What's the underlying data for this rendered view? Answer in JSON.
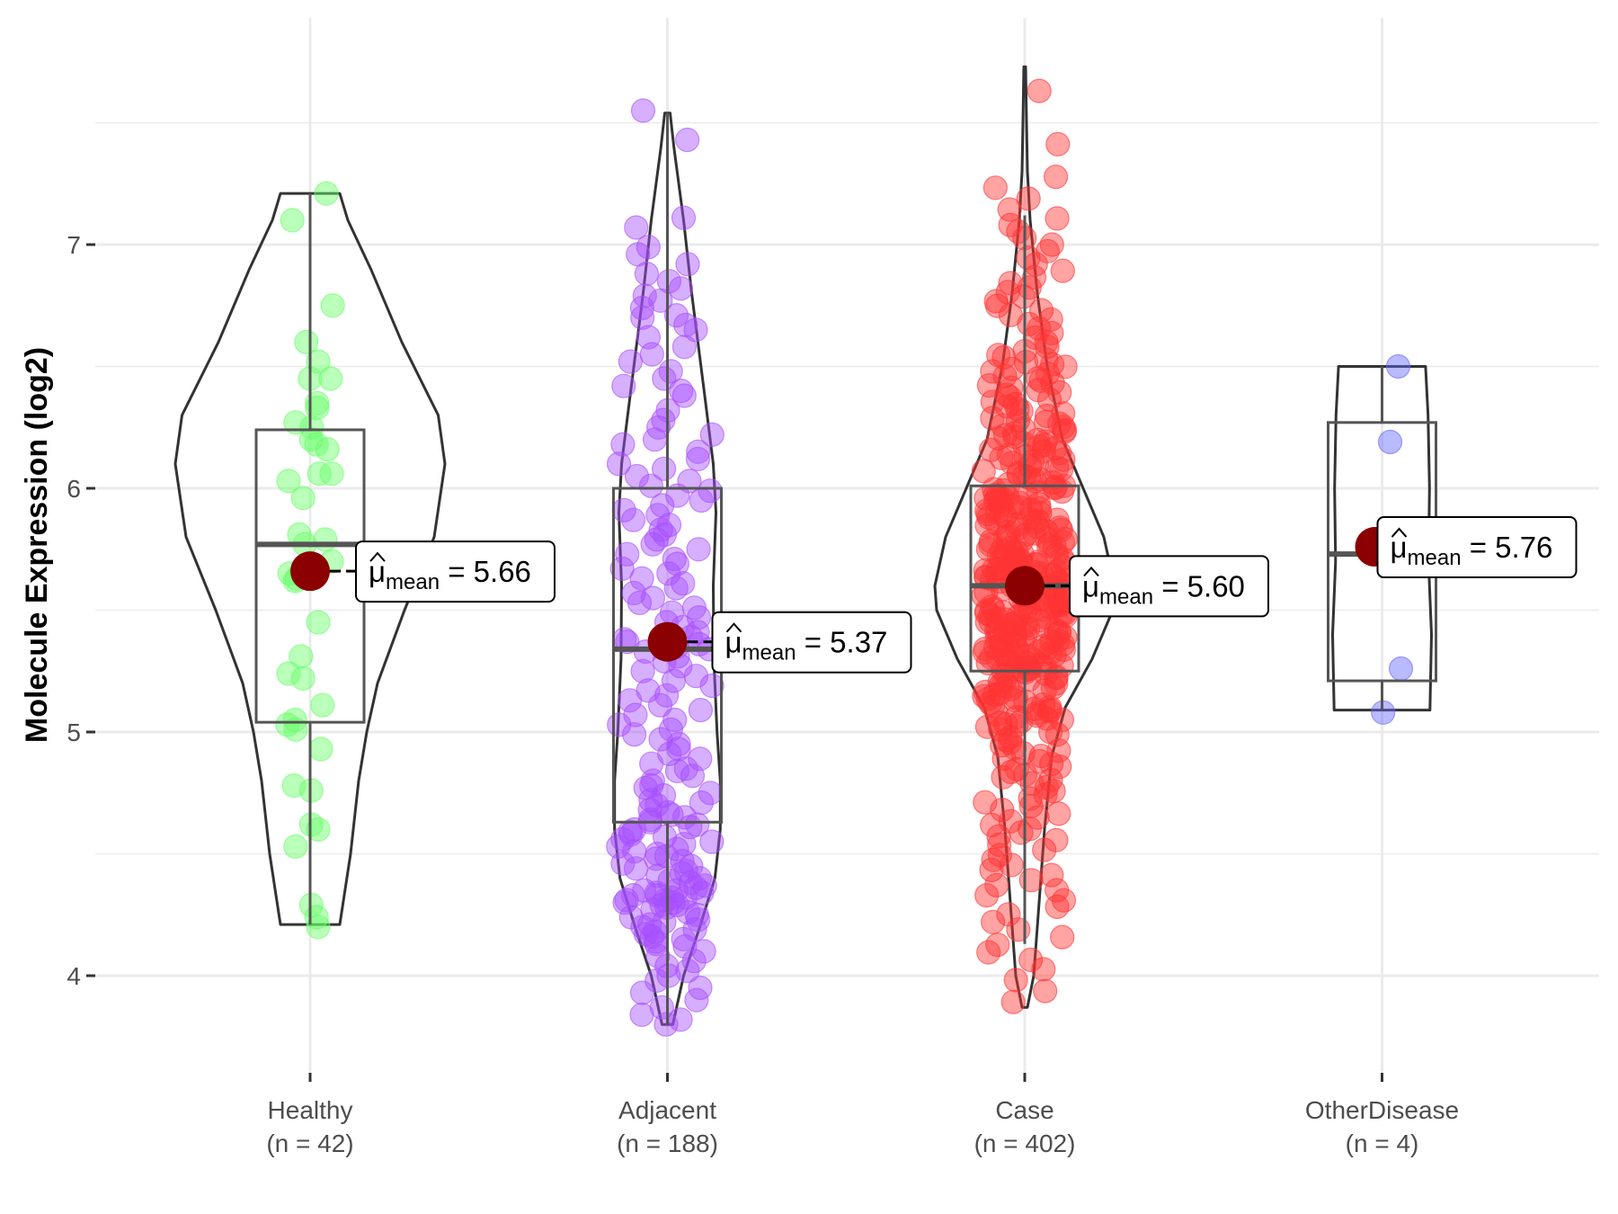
{
  "chart_data": {
    "type": "violin-box-scatter",
    "title": "",
    "xlabel": "",
    "ylabel": "Molecule Expression (log2)",
    "ylim": [
      3.6,
      7.93
    ],
    "yticks": [
      4,
      5,
      6,
      7
    ],
    "ytick_labels": [
      "4",
      "5",
      "6",
      "7"
    ],
    "grid": true,
    "legend": "none",
    "mean_color": "#8B0000",
    "mean_label_prefix": "μ",
    "mean_label_subscript": "mean",
    "groups": [
      {
        "name": "Healthy",
        "n_label": "(n = 42)",
        "color": "#66ff66",
        "mean": 5.66,
        "mean_label": "5.66",
        "box": {
          "q1": 5.04,
          "median": 5.77,
          "q3": 6.24,
          "whisker_low": 4.21,
          "whisker_high": 7.21
        },
        "violin": {
          "min": 4.21,
          "max": 7.21,
          "profile": [
            [
              4.21,
              0.22
            ],
            [
              4.5,
              0.3
            ],
            [
              4.8,
              0.36
            ],
            [
              5.0,
              0.42
            ],
            [
              5.2,
              0.5
            ],
            [
              5.5,
              0.7
            ],
            [
              5.8,
              0.92
            ],
            [
              6.1,
              1.0
            ],
            [
              6.3,
              0.95
            ],
            [
              6.6,
              0.68
            ],
            [
              6.9,
              0.45
            ],
            [
              7.1,
              0.28
            ],
            [
              7.21,
              0.22
            ]
          ]
        },
        "points": [
          [
            0.3,
            7.21
          ],
          [
            -0.33,
            7.1
          ],
          [
            0.42,
            6.75
          ],
          [
            -0.07,
            6.6
          ],
          [
            0.15,
            6.52
          ],
          [
            0,
            6.45
          ],
          [
            0.38,
            6.45
          ],
          [
            0.13,
            6.35
          ],
          [
            0.13,
            6.33
          ],
          [
            -0.27,
            6.27
          ],
          [
            0.03,
            6.25
          ],
          [
            0.02,
            6.2
          ],
          [
            0.12,
            6.18
          ],
          [
            0.32,
            6.16
          ],
          [
            0.17,
            6.06
          ],
          [
            0.4,
            6.06
          ],
          [
            -0.4,
            6.03
          ],
          [
            -0.13,
            5.96
          ],
          [
            -0.2,
            5.81
          ],
          [
            -0.1,
            5.77
          ],
          [
            0.28,
            5.79
          ],
          [
            0.4,
            5.7
          ],
          [
            -0.38,
            5.65
          ],
          [
            -0.28,
            5.62
          ],
          [
            -0.25,
            5.63
          ],
          [
            0.15,
            5.45
          ],
          [
            -0.17,
            5.31
          ],
          [
            -0.4,
            5.24
          ],
          [
            -0.13,
            5.22
          ],
          [
            0.23,
            5.11
          ],
          [
            -0.28,
            5.05
          ],
          [
            -0.42,
            5.03
          ],
          [
            -0.27,
            5.01
          ],
          [
            0.2,
            4.93
          ],
          [
            -0.3,
            4.78
          ],
          [
            0.02,
            4.76
          ],
          [
            0.02,
            4.62
          ],
          [
            0.15,
            4.6
          ],
          [
            -0.27,
            4.53
          ],
          [
            0.02,
            4.29
          ],
          [
            0.12,
            4.24
          ],
          [
            0.15,
            4.2
          ]
        ]
      },
      {
        "name": "Adjacent",
        "n_label": "(n = 188)",
        "color": "#a64dff",
        "mean": 5.37,
        "mean_label": "5.37",
        "box": {
          "q1": 4.63,
          "median": 5.34,
          "q3": 6.0,
          "whisker_low": 3.8,
          "whisker_high": 7.54
        },
        "violin": {
          "min": 3.8,
          "max": 7.54,
          "profile": [
            [
              3.8,
              0.1
            ],
            [
              4.0,
              0.3
            ],
            [
              4.2,
              0.6
            ],
            [
              4.4,
              0.88
            ],
            [
              4.6,
              0.98
            ],
            [
              4.8,
              0.98
            ],
            [
              5.0,
              0.92
            ],
            [
              5.3,
              0.86
            ],
            [
              5.6,
              0.85
            ],
            [
              5.9,
              0.9
            ],
            [
              6.1,
              0.85
            ],
            [
              6.4,
              0.68
            ],
            [
              6.8,
              0.45
            ],
            [
              7.1,
              0.3
            ],
            [
              7.4,
              0.12
            ],
            [
              7.54,
              0.05
            ]
          ]
        },
        "points": [
          7.55,
          7.43,
          7.11,
          7.07,
          6.99,
          6.96,
          6.92,
          6.88,
          6.85,
          6.82,
          6.79,
          6.77,
          6.74,
          6.71,
          6.7,
          6.67,
          6.65,
          6.62,
          6.58,
          6.55,
          6.52,
          6.48,
          6.45,
          6.42,
          6.4,
          6.38,
          6.32,
          6.28,
          6.25,
          6.22,
          6.2,
          6.18,
          6.15,
          6.12,
          6.1,
          6.08,
          6.05,
          6.03,
          6.01,
          5.99,
          5.97,
          5.95,
          5.93,
          5.91,
          5.89,
          5.87,
          5.85,
          5.83,
          5.81,
          5.79,
          5.77,
          5.75,
          5.73,
          5.71,
          5.69,
          5.67,
          5.65,
          5.63,
          5.61,
          5.59,
          5.57,
          5.55,
          5.53,
          5.51,
          5.49,
          5.47,
          5.45,
          5.43,
          5.41,
          5.39,
          5.37,
          5.35,
          5.34,
          5.33,
          5.31,
          5.29,
          5.27,
          5.25,
          5.23,
          5.21,
          5.19,
          5.17,
          5.15,
          5.13,
          5.11,
          5.09,
          5.07,
          5.05,
          5.03,
          5.01,
          4.99,
          4.97,
          4.95,
          4.93,
          4.91,
          4.89,
          4.87,
          4.85,
          4.84,
          4.82,
          4.8,
          4.78,
          4.77,
          4.75,
          4.74,
          4.72,
          4.71,
          4.7,
          4.68,
          4.67,
          4.66,
          4.65,
          4.64,
          4.63,
          4.62,
          4.61,
          4.6,
          4.59,
          4.58,
          4.57,
          4.56,
          4.55,
          4.54,
          4.53,
          4.52,
          4.51,
          4.5,
          4.49,
          4.48,
          4.47,
          4.46,
          4.45,
          4.44,
          4.43,
          4.42,
          4.41,
          4.4,
          4.39,
          4.38,
          4.37,
          4.36,
          4.35,
          4.35,
          4.34,
          4.34,
          4.33,
          4.33,
          4.32,
          4.32,
          4.31,
          4.31,
          4.3,
          4.3,
          4.29,
          4.29,
          4.28,
          4.27,
          4.26,
          4.25,
          4.24,
          4.23,
          4.22,
          4.21,
          4.2,
          4.19,
          4.18,
          4.17,
          4.16,
          4.15,
          4.14,
          4.13,
          4.12,
          4.1,
          4.08,
          4.06,
          4.04,
          4.02,
          4.0,
          3.98,
          3.95,
          3.93,
          3.9,
          3.87,
          3.84,
          3.82,
          3.8,
          5.36,
          5.38
        ]
      },
      {
        "name": "Case",
        "n_label": "(n = 402)",
        "color": "#ff3333",
        "mean": 5.6,
        "mean_label": "5.60",
        "box": {
          "q1": 5.25,
          "median": 5.6,
          "q3": 6.01,
          "whisker_low": 4.13,
          "whisker_high": 7.12
        },
        "violin": {
          "min": 3.87,
          "max": 7.73,
          "profile": [
            [
              3.87,
              0.03
            ],
            [
              4.0,
              0.1
            ],
            [
              4.3,
              0.16
            ],
            [
              4.6,
              0.22
            ],
            [
              4.9,
              0.3
            ],
            [
              5.1,
              0.45
            ],
            [
              5.3,
              0.75
            ],
            [
              5.5,
              0.98
            ],
            [
              5.6,
              1.0
            ],
            [
              5.8,
              0.88
            ],
            [
              6.0,
              0.65
            ],
            [
              6.2,
              0.42
            ],
            [
              6.5,
              0.25
            ],
            [
              6.8,
              0.14
            ],
            [
              7.1,
              0.06
            ],
            [
              7.3,
              0.03
            ],
            [
              7.5,
              0.02
            ],
            [
              7.73,
              0.01
            ]
          ]
        },
        "points_summary": {
          "count": 402,
          "quantiles": [
            [
              0,
              3.87
            ],
            [
              0.01,
              4.05
            ],
            [
              0.03,
              4.3
            ],
            [
              0.06,
              4.55
            ],
            [
              0.1,
              4.8
            ],
            [
              0.15,
              5.02
            ],
            [
              0.25,
              5.25
            ],
            [
              0.4,
              5.47
            ],
            [
              0.5,
              5.6
            ],
            [
              0.6,
              5.73
            ],
            [
              0.75,
              6.01
            ],
            [
              0.85,
              6.28
            ],
            [
              0.92,
              6.55
            ],
            [
              0.96,
              6.85
            ],
            [
              0.985,
              7.12
            ],
            [
              0.995,
              7.3
            ],
            [
              1,
              7.74
            ]
          ]
        }
      },
      {
        "name": "OtherDisease",
        "n_label": "(n = 4)",
        "color": "#6666ff",
        "mean": 5.76,
        "mean_label": "5.76",
        "box": {
          "q1": 5.21,
          "median": 5.73,
          "q3": 6.27,
          "whisker_low": 5.09,
          "whisker_high": 6.5
        },
        "violin": {
          "min": 5.09,
          "max": 6.5,
          "profile": [
            [
              5.09,
              0.97
            ],
            [
              5.4,
              1.0
            ],
            [
              5.7,
              0.94
            ],
            [
              6.0,
              0.96
            ],
            [
              6.3,
              0.93
            ],
            [
              6.5,
              0.88
            ]
          ]
        },
        "points": [
          [
            0.3,
            6.5
          ],
          [
            0.15,
            6.19
          ],
          [
            0.35,
            5.26
          ],
          [
            0.02,
            5.08
          ]
        ]
      }
    ]
  }
}
